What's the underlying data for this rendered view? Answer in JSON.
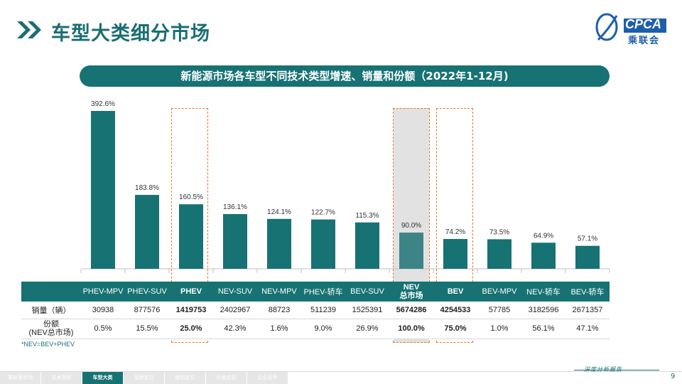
{
  "page": {
    "title": "车型大类细分市场",
    "banner": "新能源市场各车型不同技术类型增速、销量和份额（2022年1-12月)",
    "footnote": "*NEV=BEV+PHEV",
    "page_number": "9",
    "tagline": "深度分析报告",
    "logo_text": "CPCA",
    "logo_cn": "乘联会"
  },
  "nav": [
    "乘新源市场",
    "技术类型",
    "车型大类",
    "品牌定位",
    "级别定位",
    "价格定位",
    "企业竞争"
  ],
  "nav_active": 2,
  "colors": {
    "bar": "#177273",
    "bar_nev": "#3d8486",
    "highlight_dash": "#e8762c",
    "nev_background": "#bfbfbf"
  },
  "chart_data": {
    "type": "bar",
    "title": "新能源市场各车型不同技术类型增速、销量和份额（2022年1-12月)",
    "categories": [
      "PHEV-MPV",
      "PHEV-SUV",
      "PHEV",
      "NEV-SUV",
      "NEV-MPV",
      "PHEV-轿车",
      "BEV-SUV",
      "NEV\n总市场",
      "BEV",
      "BEV-MPV",
      "NEV-轿车",
      "BEV-轿车"
    ],
    "series": [
      {
        "name": "增速",
        "values": [
          392.6,
          183.8,
          160.5,
          136.1,
          124.1,
          122.7,
          115.3,
          90.0,
          74.2,
          73.5,
          64.9,
          57.1
        ]
      }
    ],
    "value_labels": [
      "392.6%",
      "183.8%",
      "160.5%",
      "136.1%",
      "124.1%",
      "122.7%",
      "115.3%",
      "90.0%",
      "74.2%",
      "73.5%",
      "64.9%",
      "57.1%"
    ],
    "ylim": [
      0,
      400
    ],
    "xlabel": "",
    "ylabel": "",
    "grid": false,
    "highlighted_categories": [
      "PHEV",
      "NEV\n总市场",
      "BEV"
    ]
  },
  "table": {
    "headers": [
      "PHEV-MPV",
      "PHEV-SUV",
      "PHEV",
      "NEV-SUV",
      "NEV-MPV",
      "PHEV-轿车",
      "BEV-SUV",
      "NEV\n总市场",
      "BEV",
      "BEV-MPV",
      "NEV-轿车",
      "BEV-轿车"
    ],
    "rows": [
      {
        "label": "销量（辆）",
        "cells": [
          "30938",
          "877576",
          "1419753",
          "2402967",
          "88723",
          "511239",
          "1525391",
          "5674286",
          "4254533",
          "57785",
          "3182596",
          "2671357"
        ]
      },
      {
        "label": "份额\n(NEV总市场)",
        "cells": [
          "0.5%",
          "15.5%",
          "25.0%",
          "42.3%",
          "1.6%",
          "9.0%",
          "26.9%",
          "100.0%",
          "75.0%",
          "1.0%",
          "56.1%",
          "47.1%"
        ]
      }
    ],
    "bold_columns": [
      2,
      7,
      8
    ]
  }
}
